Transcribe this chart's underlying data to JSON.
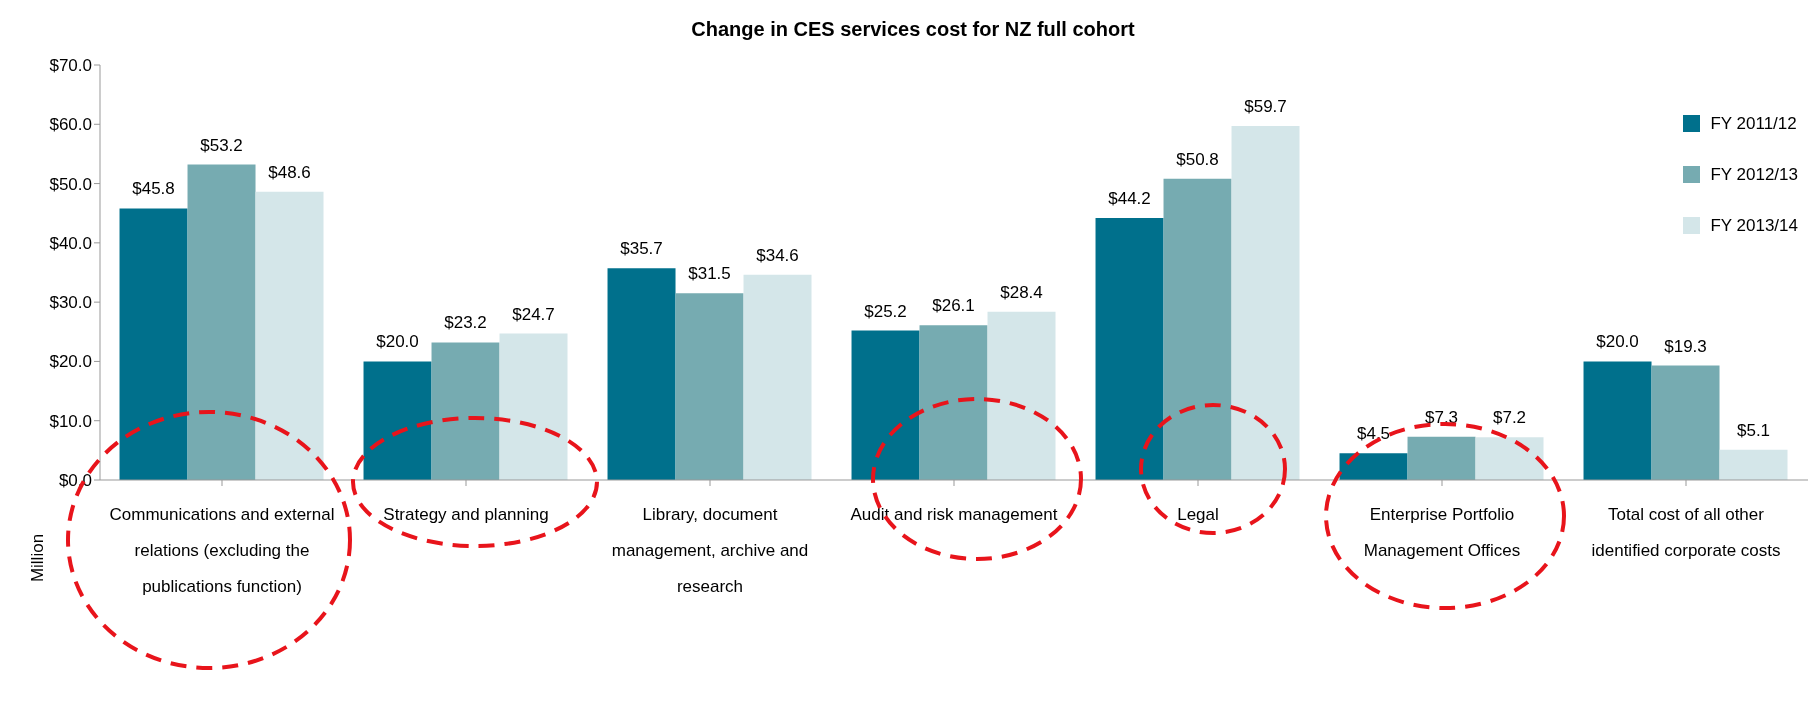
{
  "chart_data": {
    "type": "bar",
    "title": "Change in CES services cost for NZ full cohort",
    "ylabel": "Million",
    "categories": [
      "Communications and external relations (excluding the publications function)",
      "Strategy and planning",
      "Library, document management, archive and research",
      "Audit and risk management",
      "Legal",
      "Enterprise Portfolio Management Offices",
      "Total cost of all other identified corporate costs"
    ],
    "series": [
      {
        "name": "FY 2011/12",
        "color": "#00708c",
        "values": [
          45.8,
          20.0,
          35.7,
          25.2,
          44.2,
          4.5,
          20.0
        ],
        "value_labels": [
          "$45.8",
          "$20.0",
          "$35.7",
          "$25.2",
          "$44.2",
          "$4.5",
          "$20.0"
        ]
      },
      {
        "name": "FY 2012/13",
        "color": "#76abb1",
        "values": [
          53.2,
          23.2,
          31.5,
          26.1,
          50.8,
          7.3,
          19.3
        ],
        "value_labels": [
          "$53.2",
          "$23.2",
          "$31.5",
          "$26.1",
          "$50.8",
          "$7.3",
          "$19.3"
        ]
      },
      {
        "name": "FY 2013/14",
        "color": "#d4e6e9",
        "values": [
          48.6,
          24.7,
          34.6,
          28.4,
          59.7,
          7.2,
          5.1
        ],
        "value_labels": [
          "$48.6",
          "$24.7",
          "$34.6",
          "$28.4",
          "$59.7",
          "$7.2",
          "$5.1"
        ]
      }
    ],
    "ylim": [
      0,
      70
    ],
    "yticks": [
      {
        "value": 0,
        "label": "$0.0"
      },
      {
        "value": 10,
        "label": "$10.0"
      },
      {
        "value": 20,
        "label": "$20.0"
      },
      {
        "value": 30,
        "label": "$30.0"
      },
      {
        "value": 40,
        "label": "$40.0"
      },
      {
        "value": 50,
        "label": "$50.0"
      },
      {
        "value": 60,
        "label": "$60.0"
      },
      {
        "value": 70,
        "label": "$70.0"
      }
    ],
    "grid": false,
    "legend": "top right"
  }
}
